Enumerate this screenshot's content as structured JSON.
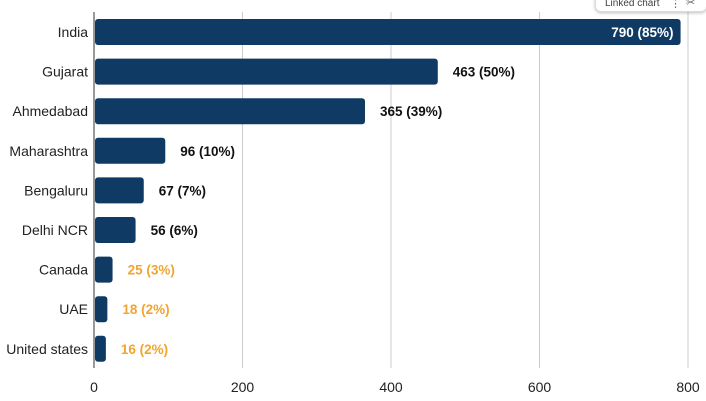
{
  "chart_data": {
    "type": "bar",
    "orientation": "horizontal",
    "categories": [
      "India",
      "Gujarat",
      "Ahmedabad",
      "Maharashtra",
      "Bengaluru",
      "Delhi NCR",
      "Canada",
      "UAE",
      "United states"
    ],
    "values": [
      790,
      463,
      365,
      96,
      67,
      56,
      25,
      18,
      16
    ],
    "data_labels": [
      "790 (85%)",
      "463 (50%)",
      "365 (39%)",
      "96 (10%)",
      "67 (7%)",
      "56 (6%)",
      "25 (3%)",
      "18 (2%)",
      "16 (2%)"
    ],
    "label_colors": [
      "#ffffff",
      "#111111",
      "#111111",
      "#111111",
      "#111111",
      "#111111",
      "#f0a531",
      "#f0a531",
      "#f0a531"
    ],
    "bar_color": "#0f3a63",
    "xlim": [
      0,
      800
    ],
    "xticks": [
      0,
      200,
      400,
      600,
      800
    ],
    "grid": true,
    "title": "",
    "xlabel": "",
    "ylabel": ""
  },
  "linked_chip": {
    "label": "Linked chart",
    "menu_icon": "more-vert-icon",
    "unlink_icon": "unlink-icon"
  }
}
